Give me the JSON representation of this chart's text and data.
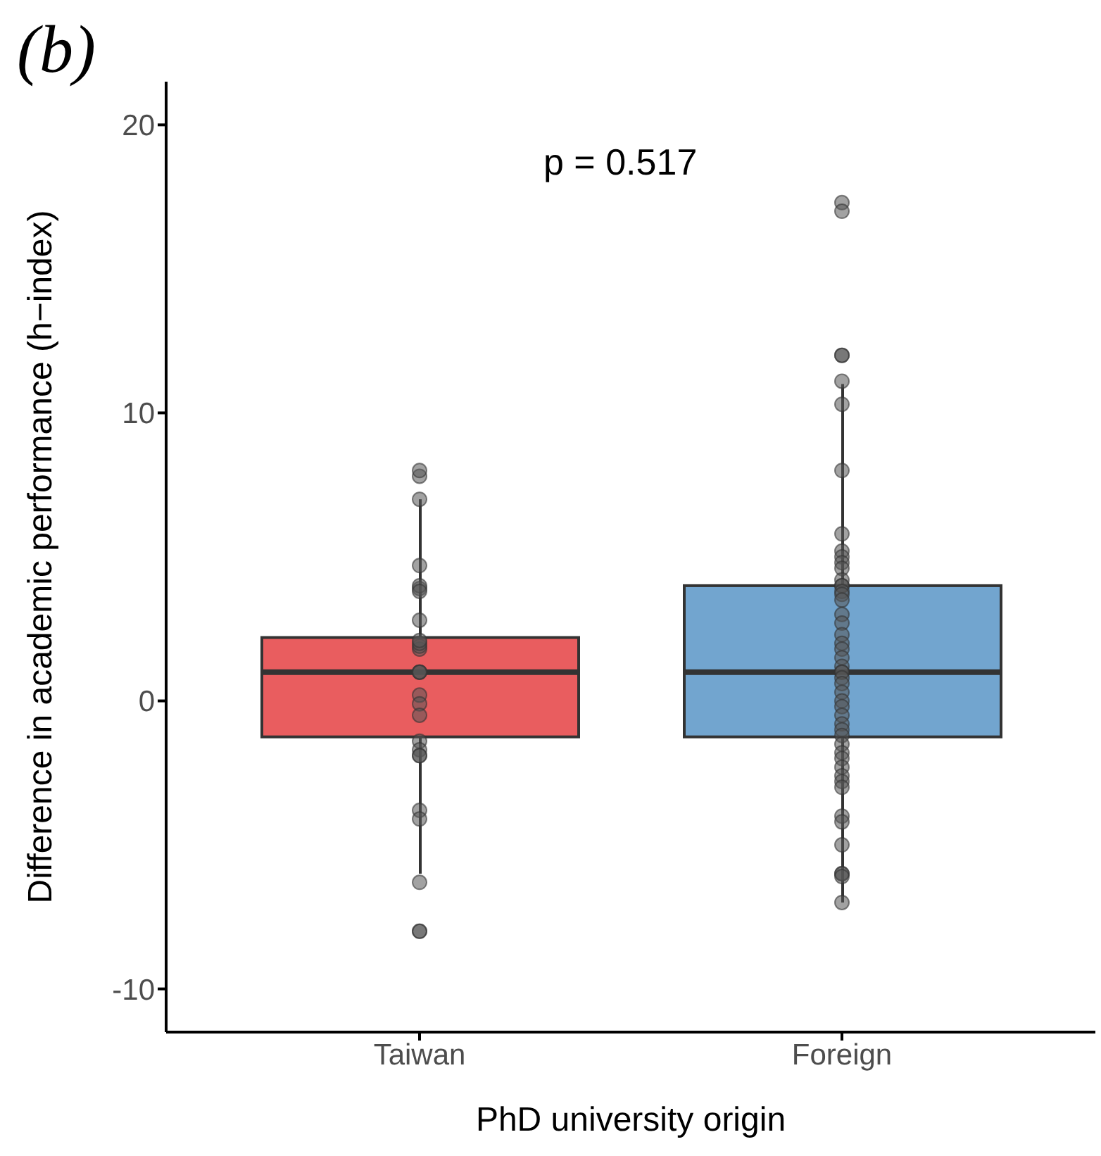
{
  "chart_data": {
    "type": "box",
    "title": "(b)",
    "xlabel": "PhD university origin",
    "ylabel": "Difference in academic performance (h−index)",
    "annotations": [
      "p = 0.517"
    ],
    "categories": [
      "Taiwan",
      "Foreign"
    ],
    "ylim": [
      -11.5,
      21.5
    ],
    "yticks": [
      -10,
      0,
      10,
      20
    ],
    "grid": false,
    "legend": false,
    "series": [
      {
        "colors": [
          "#e95d5f",
          "#72a5cf"
        ],
        "boxes": [
          {
            "low": -6,
            "q1": -1.25,
            "median": 1,
            "q3": 2.2,
            "high": 7
          },
          {
            "low": -7,
            "q1": -1.25,
            "median": 1,
            "q3": 4,
            "high": 11
          }
        ]
      },
      {
        "type": "scatter",
        "color": "#555555",
        "marker": "circle",
        "x": [
          "Taiwan",
          "Taiwan",
          "Taiwan",
          "Taiwan",
          "Taiwan",
          "Taiwan",
          "Taiwan",
          "Taiwan",
          "Taiwan",
          "Taiwan",
          "Taiwan",
          "Taiwan",
          "Taiwan",
          "Taiwan",
          "Taiwan",
          "Taiwan",
          "Taiwan",
          "Taiwan",
          "Taiwan",
          "Taiwan",
          "Taiwan",
          "Taiwan",
          "Taiwan",
          "Taiwan",
          "Taiwan",
          "Taiwan",
          "Taiwan",
          "Foreign",
          "Foreign",
          "Foreign",
          "Foreign",
          "Foreign",
          "Foreign",
          "Foreign",
          "Foreign",
          "Foreign",
          "Foreign",
          "Foreign",
          "Foreign",
          "Foreign",
          "Foreign",
          "Foreign",
          "Foreign",
          "Foreign",
          "Foreign",
          "Foreign",
          "Foreign",
          "Foreign",
          "Foreign",
          "Foreign",
          "Foreign",
          "Foreign",
          "Foreign",
          "Foreign",
          "Foreign",
          "Foreign",
          "Foreign",
          "Foreign",
          "Foreign",
          "Foreign",
          "Foreign",
          "Foreign",
          "Foreign",
          "Foreign",
          "Foreign",
          "Foreign",
          "Foreign",
          "Foreign",
          "Foreign",
          "Foreign",
          "Foreign",
          "Foreign",
          "Foreign",
          "Foreign",
          "Foreign",
          "Foreign",
          "Foreign"
        ],
        "values": [
          7.8,
          8,
          7,
          4.7,
          3.9,
          4,
          3.8,
          2.8,
          1.8,
          1.9,
          2,
          2.1,
          1,
          1,
          1,
          0.2,
          -0.1,
          -0.5,
          -1.4,
          -1.7,
          -1.9,
          -1.9,
          -3.8,
          -4.1,
          -6.3,
          -8,
          -8,
          17.3,
          17,
          12,
          12,
          11.1,
          10.3,
          8,
          5.8,
          5.2,
          5,
          4.8,
          4.6,
          4.2,
          4,
          4,
          3.8,
          3.7,
          3.5,
          3,
          2.7,
          2.3,
          2,
          1.8,
          1.5,
          1.2,
          1,
          1,
          0.8,
          0.6,
          0.3,
          0,
          -0.2,
          -0.5,
          -0.8,
          -1,
          -1.2,
          -1.5,
          -1.8,
          -2,
          -2.3,
          -2.6,
          -2.8,
          -3,
          -4,
          -4.2,
          -5,
          -6,
          -6,
          -6.1,
          -7
        ]
      }
    ]
  }
}
